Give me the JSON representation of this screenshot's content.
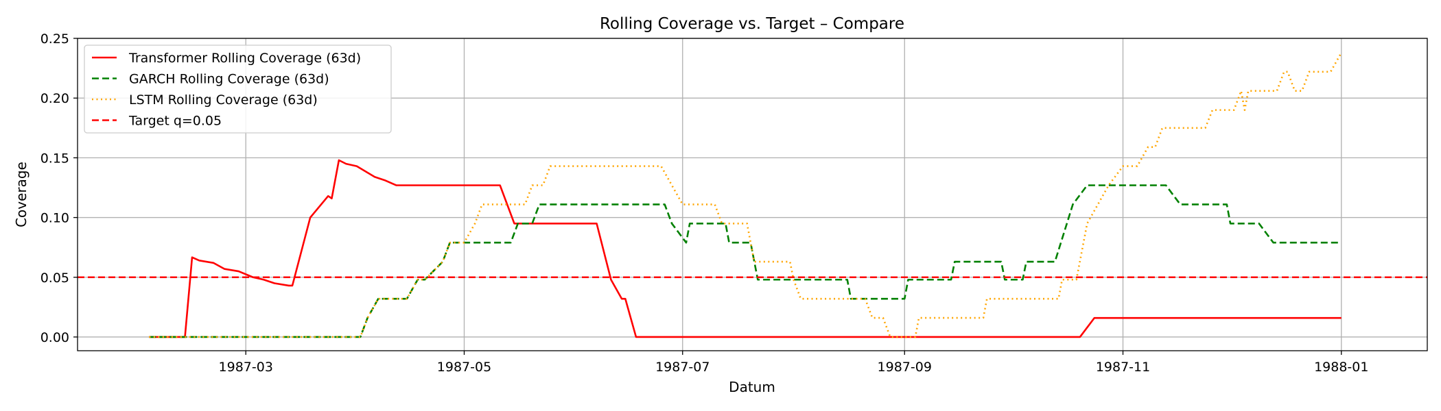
{
  "chart_data": {
    "type": "line",
    "title": "Rolling Coverage vs. Target – Compare",
    "xlabel": "Datum",
    "ylabel": "Coverage",
    "xlim": [
      "1987-01-13",
      "1988-01-25"
    ],
    "ylim": [
      -0.0115,
      0.25
    ],
    "xticks": [
      "1987-03-01",
      "1987-05-01",
      "1987-07-01",
      "1987-09-01",
      "1987-11-01",
      "1988-01-01"
    ],
    "xtick_labels": [
      "1987-03",
      "1987-05",
      "1987-07",
      "1987-09",
      "1987-11",
      "1988-01"
    ],
    "yticks": [
      0.0,
      0.05,
      0.1,
      0.15,
      0.2,
      0.25
    ],
    "ytick_labels": [
      "0.00",
      "0.05",
      "0.10",
      "0.15",
      "0.20",
      "0.25"
    ],
    "grid": true,
    "legend_position": "upper left",
    "series": [
      {
        "name": "Transformer Rolling Coverage (63d)",
        "color": "#ff0000",
        "style": "solid",
        "points": [
          [
            "1987-02-02",
            0.0
          ],
          [
            "1987-02-12",
            0.0
          ],
          [
            "1987-02-14",
            0.0667
          ],
          [
            "1987-02-16",
            0.064
          ],
          [
            "1987-02-20",
            0.062
          ],
          [
            "1987-02-23",
            0.057
          ],
          [
            "1987-02-27",
            0.055
          ],
          [
            "1987-03-03",
            0.05
          ],
          [
            "1987-03-06",
            0.048
          ],
          [
            "1987-03-09",
            0.045
          ],
          [
            "1987-03-13",
            0.043
          ],
          [
            "1987-03-14",
            0.043
          ],
          [
            "1987-03-19",
            0.1
          ],
          [
            "1987-03-24",
            0.118
          ],
          [
            "1987-03-25",
            0.116
          ],
          [
            "1987-03-27",
            0.148
          ],
          [
            "1987-03-29",
            0.145
          ],
          [
            "1987-04-01",
            0.143
          ],
          [
            "1987-04-06",
            0.134
          ],
          [
            "1987-04-09",
            0.131
          ],
          [
            "1987-04-12",
            0.127
          ],
          [
            "1987-05-11",
            0.127
          ],
          [
            "1987-05-15",
            0.095
          ],
          [
            "1987-06-07",
            0.095
          ],
          [
            "1987-06-11",
            0.048
          ],
          [
            "1987-06-14",
            0.032
          ],
          [
            "1987-06-15",
            0.032
          ],
          [
            "1987-06-18",
            0.0
          ],
          [
            "1987-10-20",
            0.0
          ],
          [
            "1987-10-24",
            0.0159
          ],
          [
            "1988-01-01",
            0.0159
          ]
        ]
      },
      {
        "name": "GARCH Rolling Coverage (63d)",
        "color": "#008000",
        "style": "dashed",
        "points": [
          [
            "1987-02-02",
            0.0
          ],
          [
            "1987-04-02",
            0.0
          ],
          [
            "1987-04-04",
            0.016
          ],
          [
            "1987-04-07",
            0.032
          ],
          [
            "1987-04-15",
            0.032
          ],
          [
            "1987-04-18",
            0.048
          ],
          [
            "1987-04-20",
            0.048
          ],
          [
            "1987-04-25",
            0.063
          ],
          [
            "1987-04-27",
            0.079
          ],
          [
            "1987-05-14",
            0.079
          ],
          [
            "1987-05-16",
            0.095
          ],
          [
            "1987-05-20",
            0.095
          ],
          [
            "1987-05-22",
            0.111
          ],
          [
            "1987-06-26",
            0.111
          ],
          [
            "1987-06-28",
            0.095
          ],
          [
            "1987-07-02",
            0.079
          ],
          [
            "1987-07-03",
            0.095
          ],
          [
            "1987-07-13",
            0.095
          ],
          [
            "1987-07-14",
            0.079
          ],
          [
            "1987-07-20",
            0.079
          ],
          [
            "1987-07-22",
            0.048
          ],
          [
            "1987-08-16",
            0.048
          ],
          [
            "1987-08-17",
            0.032
          ],
          [
            "1987-09-01",
            0.032
          ],
          [
            "1987-09-02",
            0.048
          ],
          [
            "1987-09-14",
            0.048
          ],
          [
            "1987-09-15",
            0.063
          ],
          [
            "1987-09-28",
            0.063
          ],
          [
            "1987-09-29",
            0.048
          ],
          [
            "1987-10-04",
            0.048
          ],
          [
            "1987-10-05",
            0.063
          ],
          [
            "1987-10-13",
            0.063
          ],
          [
            "1987-10-18",
            0.111
          ],
          [
            "1987-10-22",
            0.127
          ],
          [
            "1987-11-13",
            0.127
          ],
          [
            "1987-11-17",
            0.111
          ],
          [
            "1987-11-30",
            0.111
          ],
          [
            "1987-12-01",
            0.095
          ],
          [
            "1987-12-09",
            0.095
          ],
          [
            "1987-12-13",
            0.079
          ],
          [
            "1988-01-01",
            0.079
          ]
        ]
      },
      {
        "name": "LSTM Rolling Coverage (63d)",
        "color": "#ffa500",
        "style": "dotted",
        "points": [
          [
            "1987-02-02",
            0.0
          ],
          [
            "1987-04-02",
            0.0
          ],
          [
            "1987-04-04",
            0.016
          ],
          [
            "1987-04-07",
            0.032
          ],
          [
            "1987-04-15",
            0.032
          ],
          [
            "1987-04-18",
            0.048
          ],
          [
            "1987-04-20",
            0.048
          ],
          [
            "1987-04-25",
            0.063
          ],
          [
            "1987-04-27",
            0.079
          ],
          [
            "1987-05-01",
            0.079
          ],
          [
            "1987-05-04",
            0.095
          ],
          [
            "1987-05-06",
            0.111
          ],
          [
            "1987-05-18",
            0.111
          ],
          [
            "1987-05-20",
            0.127
          ],
          [
            "1987-05-23",
            0.127
          ],
          [
            "1987-05-25",
            0.143
          ],
          [
            "1987-06-25",
            0.143
          ],
          [
            "1987-06-28",
            0.127
          ],
          [
            "1987-07-01",
            0.111
          ],
          [
            "1987-07-10",
            0.111
          ],
          [
            "1987-07-12",
            0.095
          ],
          [
            "1987-07-19",
            0.095
          ],
          [
            "1987-07-21",
            0.063
          ],
          [
            "1987-07-31",
            0.063
          ],
          [
            "1987-08-01",
            0.048
          ],
          [
            "1987-08-03",
            0.032
          ],
          [
            "1987-08-21",
            0.032
          ],
          [
            "1987-08-23",
            0.016
          ],
          [
            "1987-08-26",
            0.016
          ],
          [
            "1987-08-28",
            0.0
          ],
          [
            "1987-09-04",
            0.0
          ],
          [
            "1987-09-05",
            0.016
          ],
          [
            "1987-09-23",
            0.016
          ],
          [
            "1987-09-24",
            0.032
          ],
          [
            "1987-10-14",
            0.032
          ],
          [
            "1987-10-15",
            0.048
          ],
          [
            "1987-10-19",
            0.048
          ],
          [
            "1987-10-22",
            0.095
          ],
          [
            "1987-10-25",
            0.111
          ],
          [
            "1987-10-28",
            0.127
          ],
          [
            "1987-11-01",
            0.143
          ],
          [
            "1987-11-05",
            0.143
          ],
          [
            "1987-11-08",
            0.159
          ],
          [
            "1987-11-10",
            0.159
          ],
          [
            "1987-11-12",
            0.175
          ],
          [
            "1987-11-24",
            0.175
          ],
          [
            "1987-11-26",
            0.19
          ],
          [
            "1987-12-02",
            0.19
          ],
          [
            "1987-12-04",
            0.206
          ],
          [
            "1987-12-05",
            0.19
          ],
          [
            "1987-12-06",
            0.206
          ],
          [
            "1987-12-14",
            0.206
          ],
          [
            "1987-12-16",
            0.222
          ],
          [
            "1987-12-17",
            0.222
          ],
          [
            "1987-12-19",
            0.206
          ],
          [
            "1987-12-21",
            0.206
          ],
          [
            "1987-12-23",
            0.222
          ],
          [
            "1987-12-29",
            0.222
          ],
          [
            "1988-01-01",
            0.238
          ]
        ]
      },
      {
        "name": "Target q=0.05",
        "color": "#ff0000",
        "style": "dashed",
        "hline": 0.05
      }
    ]
  }
}
